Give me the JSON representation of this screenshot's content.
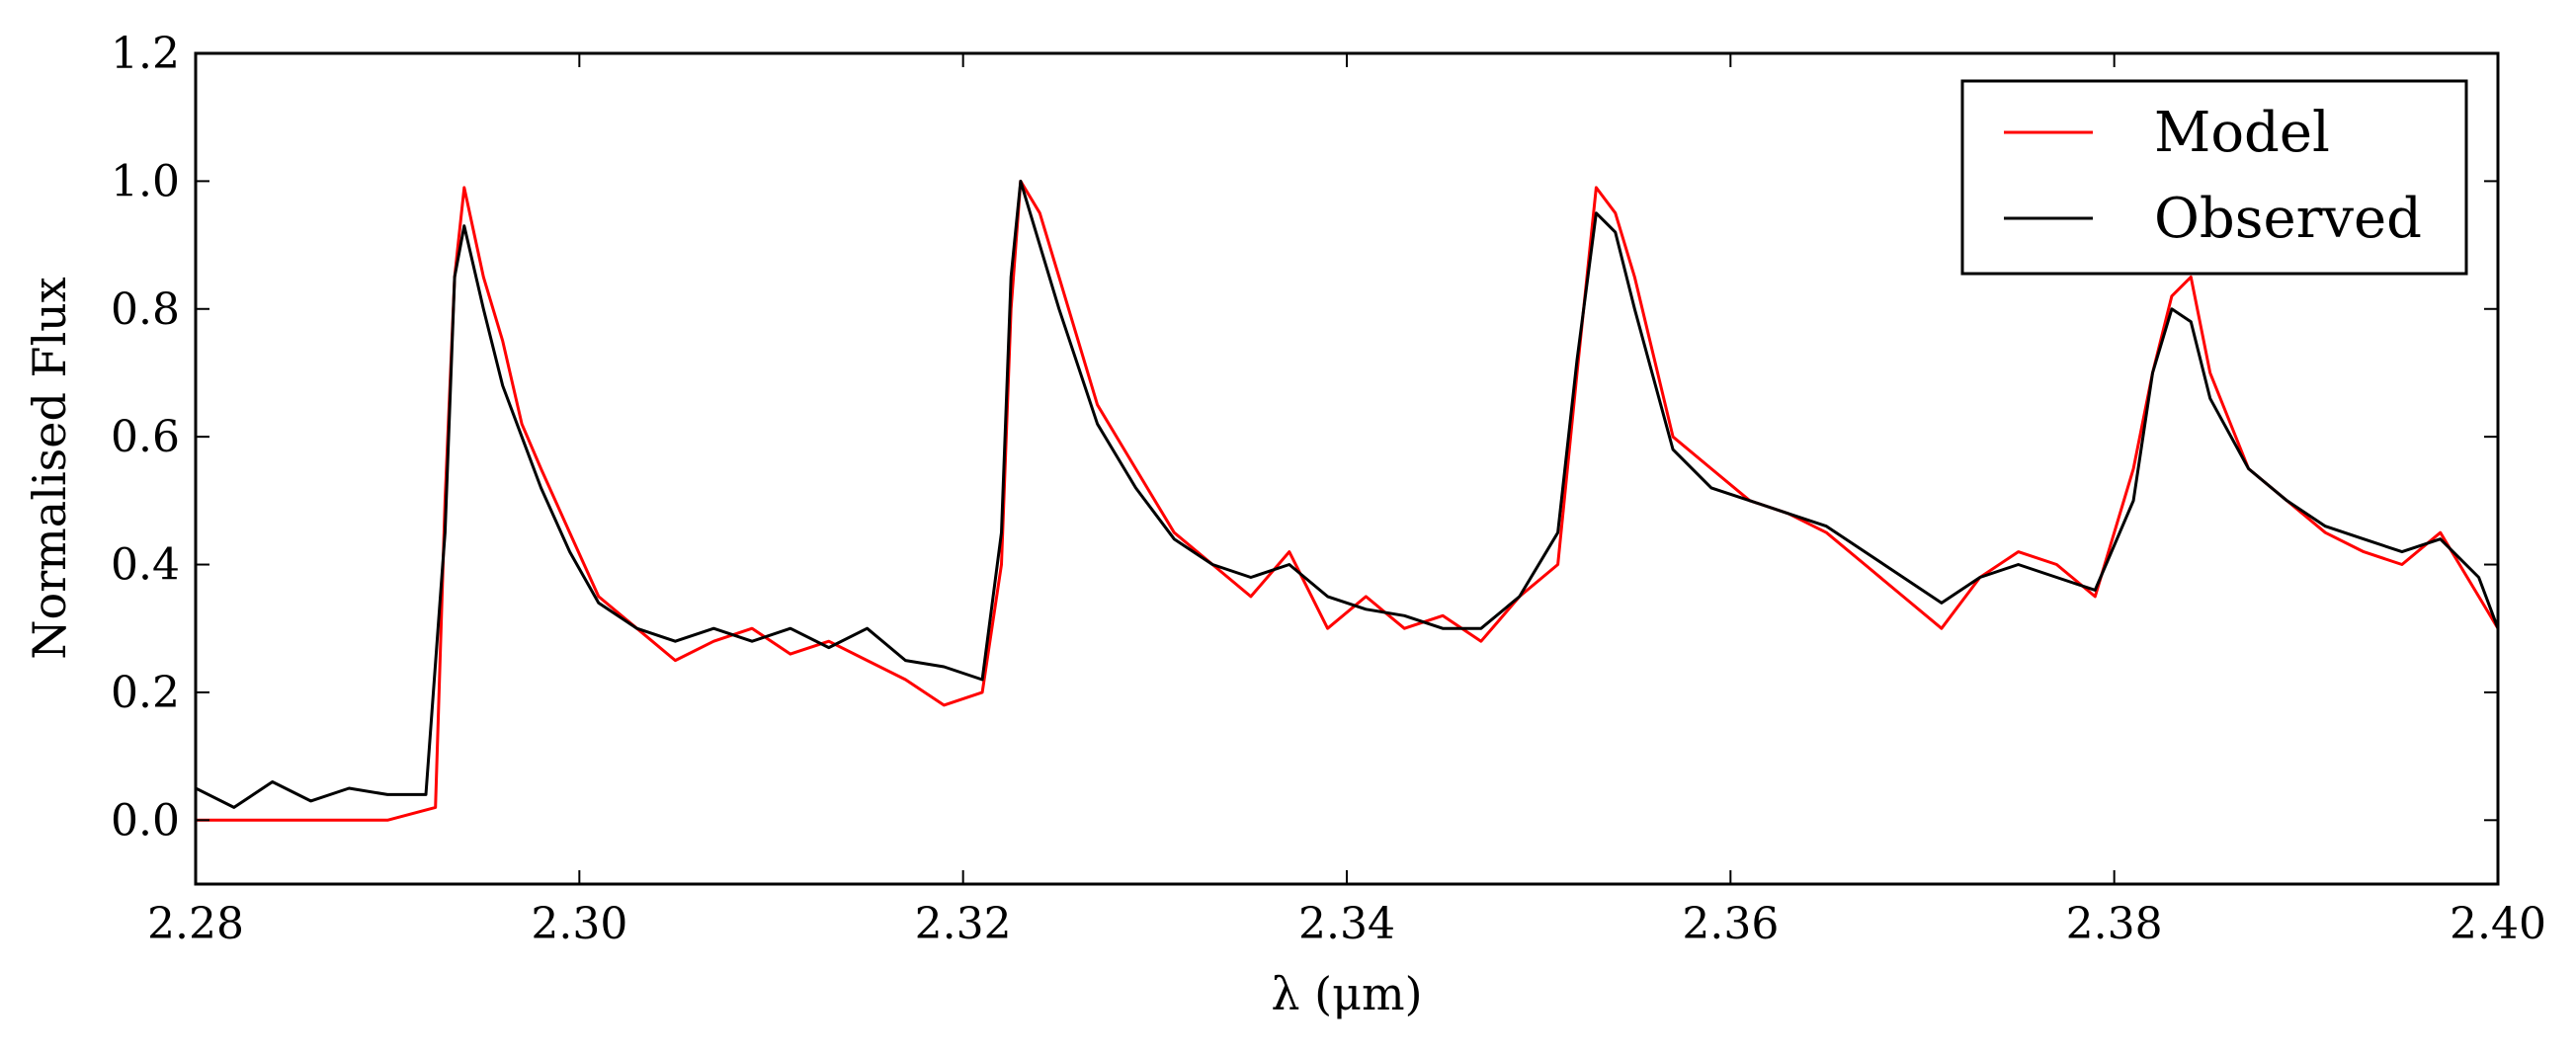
{
  "chart_data": {
    "type": "line",
    "xlabel": "λ (μm)",
    "ylabel": "Normalised Flux",
    "xlim": [
      2.28,
      2.4
    ],
    "ylim": [
      -0.1,
      1.2
    ],
    "xticks": [
      2.28,
      2.3,
      2.32,
      2.34,
      2.36,
      2.38,
      2.4
    ],
    "xtick_labels": [
      "2.28",
      "2.30",
      "2.32",
      "2.34",
      "2.36",
      "2.38",
      "2.40"
    ],
    "yticks": [
      0.0,
      0.2,
      0.4,
      0.6,
      0.8,
      1.0,
      1.2
    ],
    "ytick_labels": [
      "0.0",
      "0.2",
      "0.4",
      "0.6",
      "0.8",
      "1.0",
      "1.2"
    ],
    "grid": false,
    "legend_position": "top-right",
    "series": [
      {
        "name": "Model",
        "color": "#ff0000",
        "x": [
          2.28,
          2.285,
          2.29,
          2.2925,
          2.293,
          2.2935,
          2.294,
          2.295,
          2.296,
          2.297,
          2.298,
          2.2995,
          2.301,
          2.303,
          2.305,
          2.307,
          2.309,
          2.311,
          2.313,
          2.315,
          2.317,
          2.319,
          2.321,
          2.322,
          2.3225,
          2.323,
          2.324,
          2.325,
          2.327,
          2.329,
          2.331,
          2.333,
          2.335,
          2.337,
          2.339,
          2.341,
          2.343,
          2.345,
          2.347,
          2.349,
          2.351,
          2.352,
          2.353,
          2.354,
          2.355,
          2.357,
          2.359,
          2.361,
          2.363,
          2.365,
          2.367,
          2.369,
          2.371,
          2.373,
          2.375,
          2.377,
          2.379,
          2.381,
          2.382,
          2.383,
          2.384,
          2.385,
          2.387,
          2.389,
          2.391,
          2.393,
          2.395,
          2.397,
          2.399,
          2.4
        ],
        "y": [
          0.0,
          0.0,
          0.0,
          0.02,
          0.5,
          0.85,
          0.99,
          0.85,
          0.75,
          0.62,
          0.55,
          0.45,
          0.35,
          0.3,
          0.25,
          0.28,
          0.3,
          0.26,
          0.28,
          0.25,
          0.22,
          0.18,
          0.2,
          0.4,
          0.8,
          1.0,
          0.95,
          0.85,
          0.65,
          0.55,
          0.45,
          0.4,
          0.35,
          0.42,
          0.3,
          0.35,
          0.3,
          0.32,
          0.28,
          0.35,
          0.4,
          0.7,
          0.99,
          0.95,
          0.85,
          0.6,
          0.55,
          0.5,
          0.48,
          0.45,
          0.4,
          0.35,
          0.3,
          0.38,
          0.42,
          0.4,
          0.35,
          0.55,
          0.7,
          0.82,
          0.85,
          0.7,
          0.55,
          0.5,
          0.45,
          0.42,
          0.4,
          0.45,
          0.35,
          0.3
        ]
      },
      {
        "name": "Observed",
        "color": "#000000",
        "x": [
          2.28,
          2.282,
          2.284,
          2.286,
          2.288,
          2.29,
          2.292,
          2.293,
          2.2935,
          2.294,
          2.295,
          2.296,
          2.297,
          2.298,
          2.2995,
          2.301,
          2.303,
          2.305,
          2.307,
          2.309,
          2.311,
          2.313,
          2.315,
          2.317,
          2.319,
          2.321,
          2.322,
          2.3225,
          2.323,
          2.324,
          2.325,
          2.327,
          2.329,
          2.331,
          2.333,
          2.335,
          2.337,
          2.339,
          2.341,
          2.343,
          2.345,
          2.347,
          2.349,
          2.351,
          2.352,
          2.353,
          2.354,
          2.355,
          2.357,
          2.359,
          2.361,
          2.363,
          2.365,
          2.367,
          2.369,
          2.371,
          2.373,
          2.375,
          2.377,
          2.379,
          2.381,
          2.382,
          2.383,
          2.384,
          2.385,
          2.387,
          2.389,
          2.391,
          2.393,
          2.395,
          2.397,
          2.399,
          2.4
        ],
        "y": [
          0.05,
          0.02,
          0.06,
          0.03,
          0.05,
          0.04,
          0.04,
          0.45,
          0.85,
          0.93,
          0.8,
          0.68,
          0.6,
          0.52,
          0.42,
          0.34,
          0.3,
          0.28,
          0.3,
          0.28,
          0.3,
          0.27,
          0.3,
          0.25,
          0.24,
          0.22,
          0.45,
          0.85,
          1.0,
          0.9,
          0.8,
          0.62,
          0.52,
          0.44,
          0.4,
          0.38,
          0.4,
          0.35,
          0.33,
          0.32,
          0.3,
          0.3,
          0.35,
          0.45,
          0.72,
          0.95,
          0.92,
          0.8,
          0.58,
          0.52,
          0.5,
          0.48,
          0.46,
          0.42,
          0.38,
          0.34,
          0.38,
          0.4,
          0.38,
          0.36,
          0.5,
          0.7,
          0.8,
          0.78,
          0.66,
          0.55,
          0.5,
          0.46,
          0.44,
          0.42,
          0.44,
          0.38,
          0.3
        ]
      }
    ]
  }
}
